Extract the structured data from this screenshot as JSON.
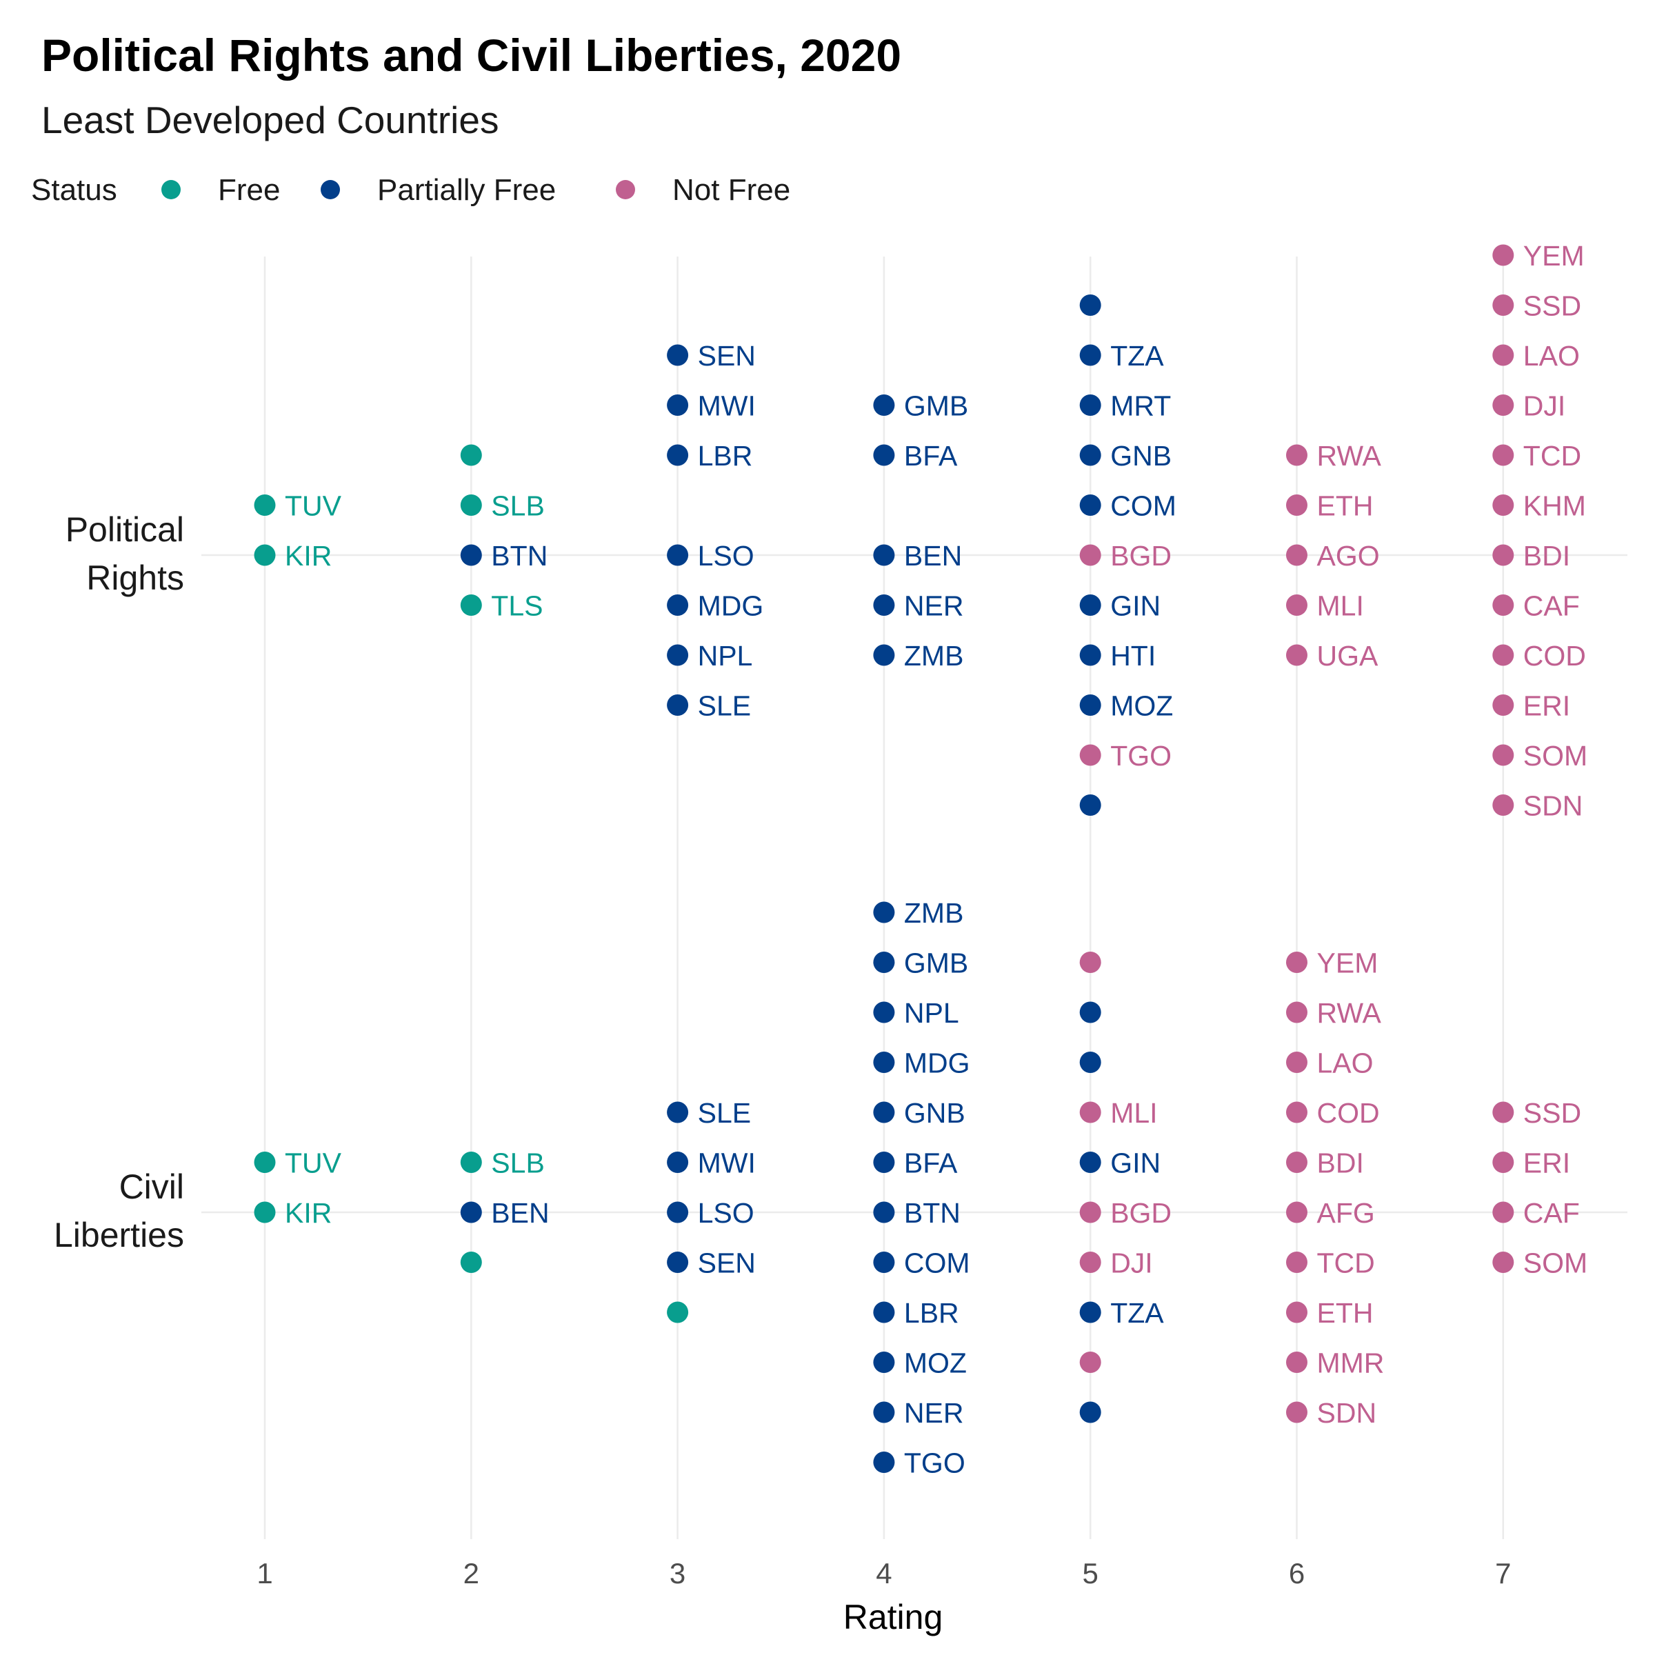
{
  "title": "Political Rights and Civil Liberties, 2020",
  "subtitle": "Least Developed Countries",
  "legend": {
    "title": "Status",
    "items": [
      {
        "key": "Free",
        "label": "Free",
        "color": "#089e8e"
      },
      {
        "key": "Partially Free",
        "label": "Partially Free",
        "color": "#023e8a"
      },
      {
        "key": "Not Free",
        "label": "Not Free",
        "color": "#c06090"
      }
    ],
    "placement": "top-left"
  },
  "chart_data": {
    "type": "scatter",
    "title": "Political Rights and Civil Liberties, 2020",
    "subtitle": "Least Developed Countries",
    "xlabel": "Rating",
    "ylabel": "",
    "x_ticks": [
      1,
      2,
      3,
      4,
      5,
      6,
      7
    ],
    "xlim": [
      1,
      7
    ],
    "categories": [
      "Political Rights",
      "Civil Liberties"
    ],
    "category_labels": [
      [
        "Political",
        "Rights"
      ],
      [
        "Civil",
        "Liberties"
      ]
    ],
    "grid": true,
    "series": [
      {
        "name": "Free",
        "color": "#089e8e",
        "points": [
          {
            "cat": "Political Rights",
            "x": 1,
            "offset": 0,
            "label": "KIR"
          },
          {
            "cat": "Political Rights",
            "x": 1,
            "offset": 1,
            "label": "TUV"
          },
          {
            "cat": "Political Rights",
            "x": 2,
            "offset": -1,
            "label": "TLS"
          },
          {
            "cat": "Political Rights",
            "x": 2,
            "offset": 1,
            "label": "SLB"
          },
          {
            "cat": "Political Rights",
            "x": 2,
            "offset": 2,
            "label": ""
          },
          {
            "cat": "Civil Liberties",
            "x": 1,
            "offset": 0,
            "label": "KIR"
          },
          {
            "cat": "Civil Liberties",
            "x": 1,
            "offset": 1,
            "label": "TUV"
          },
          {
            "cat": "Civil Liberties",
            "x": 2,
            "offset": 1,
            "label": "SLB"
          },
          {
            "cat": "Civil Liberties",
            "x": 2,
            "offset": -1,
            "label": ""
          },
          {
            "cat": "Civil Liberties",
            "x": 3,
            "offset": -2,
            "label": ""
          }
        ]
      },
      {
        "name": "Partially Free",
        "color": "#023e8a",
        "points": [
          {
            "cat": "Political Rights",
            "x": 2,
            "offset": 0,
            "label": "BTN"
          },
          {
            "cat": "Political Rights",
            "x": 3,
            "offset": 4,
            "label": "SEN"
          },
          {
            "cat": "Political Rights",
            "x": 3,
            "offset": 3,
            "label": "MWI"
          },
          {
            "cat": "Political Rights",
            "x": 3,
            "offset": 2,
            "label": "LBR"
          },
          {
            "cat": "Political Rights",
            "x": 3,
            "offset": 0,
            "label": "LSO"
          },
          {
            "cat": "Political Rights",
            "x": 3,
            "offset": -1,
            "label": "MDG"
          },
          {
            "cat": "Political Rights",
            "x": 3,
            "offset": -2,
            "label": "NPL"
          },
          {
            "cat": "Political Rights",
            "x": 3,
            "offset": -3,
            "label": "SLE"
          },
          {
            "cat": "Political Rights",
            "x": 4,
            "offset": 3,
            "label": "GMB"
          },
          {
            "cat": "Political Rights",
            "x": 4,
            "offset": 2,
            "label": "BFA"
          },
          {
            "cat": "Political Rights",
            "x": 4,
            "offset": 0,
            "label": "BEN"
          },
          {
            "cat": "Political Rights",
            "x": 4,
            "offset": -1,
            "label": "NER"
          },
          {
            "cat": "Political Rights",
            "x": 4,
            "offset": -2,
            "label": "ZMB"
          },
          {
            "cat": "Political Rights",
            "x": 5,
            "offset": 5,
            "label": ""
          },
          {
            "cat": "Political Rights",
            "x": 5,
            "offset": 4,
            "label": "TZA"
          },
          {
            "cat": "Political Rights",
            "x": 5,
            "offset": 3,
            "label": "MRT"
          },
          {
            "cat": "Political Rights",
            "x": 5,
            "offset": 2,
            "label": "GNB"
          },
          {
            "cat": "Political Rights",
            "x": 5,
            "offset": 1,
            "label": "COM"
          },
          {
            "cat": "Political Rights",
            "x": 5,
            "offset": -1,
            "label": "GIN"
          },
          {
            "cat": "Political Rights",
            "x": 5,
            "offset": -2,
            "label": "HTI"
          },
          {
            "cat": "Political Rights",
            "x": 5,
            "offset": -3,
            "label": "MOZ"
          },
          {
            "cat": "Political Rights",
            "x": 5,
            "offset": -5,
            "label": ""
          },
          {
            "cat": "Civil Liberties",
            "x": 2,
            "offset": 0,
            "label": "BEN"
          },
          {
            "cat": "Civil Liberties",
            "x": 3,
            "offset": 2,
            "label": "SLE"
          },
          {
            "cat": "Civil Liberties",
            "x": 3,
            "offset": 1,
            "label": "MWI"
          },
          {
            "cat": "Civil Liberties",
            "x": 3,
            "offset": 0,
            "label": "LSO"
          },
          {
            "cat": "Civil Liberties",
            "x": 3,
            "offset": -1,
            "label": "SEN"
          },
          {
            "cat": "Civil Liberties",
            "x": 4,
            "offset": 6,
            "label": "ZMB"
          },
          {
            "cat": "Civil Liberties",
            "x": 4,
            "offset": 5,
            "label": "GMB"
          },
          {
            "cat": "Civil Liberties",
            "x": 4,
            "offset": 4,
            "label": "NPL"
          },
          {
            "cat": "Civil Liberties",
            "x": 4,
            "offset": 3,
            "label": "MDG"
          },
          {
            "cat": "Civil Liberties",
            "x": 4,
            "offset": 2,
            "label": "GNB"
          },
          {
            "cat": "Civil Liberties",
            "x": 4,
            "offset": 1,
            "label": "BFA"
          },
          {
            "cat": "Civil Liberties",
            "x": 4,
            "offset": 0,
            "label": "BTN"
          },
          {
            "cat": "Civil Liberties",
            "x": 4,
            "offset": -1,
            "label": "COM"
          },
          {
            "cat": "Civil Liberties",
            "x": 4,
            "offset": -2,
            "label": "LBR"
          },
          {
            "cat": "Civil Liberties",
            "x": 4,
            "offset": -3,
            "label": "MOZ"
          },
          {
            "cat": "Civil Liberties",
            "x": 4,
            "offset": -4,
            "label": "NER"
          },
          {
            "cat": "Civil Liberties",
            "x": 4,
            "offset": -5,
            "label": "TGO"
          },
          {
            "cat": "Civil Liberties",
            "x": 5,
            "offset": 4,
            "label": ""
          },
          {
            "cat": "Civil Liberties",
            "x": 5,
            "offset": 3,
            "label": ""
          },
          {
            "cat": "Civil Liberties",
            "x": 5,
            "offset": 1,
            "label": "GIN"
          },
          {
            "cat": "Civil Liberties",
            "x": 5,
            "offset": -2,
            "label": "TZA"
          },
          {
            "cat": "Civil Liberties",
            "x": 5,
            "offset": -4,
            "label": ""
          }
        ]
      },
      {
        "name": "Not Free",
        "color": "#c06090",
        "points": [
          {
            "cat": "Political Rights",
            "x": 5,
            "offset": 0,
            "label": "BGD"
          },
          {
            "cat": "Political Rights",
            "x": 5,
            "offset": -4,
            "label": "TGO"
          },
          {
            "cat": "Political Rights",
            "x": 6,
            "offset": 2,
            "label": "RWA"
          },
          {
            "cat": "Political Rights",
            "x": 6,
            "offset": 1,
            "label": "ETH"
          },
          {
            "cat": "Political Rights",
            "x": 6,
            "offset": 0,
            "label": "AGO"
          },
          {
            "cat": "Political Rights",
            "x": 6,
            "offset": -1,
            "label": "MLI"
          },
          {
            "cat": "Political Rights",
            "x": 6,
            "offset": -2,
            "label": "UGA"
          },
          {
            "cat": "Political Rights",
            "x": 7,
            "offset": 6,
            "label": "YEM"
          },
          {
            "cat": "Political Rights",
            "x": 7,
            "offset": 5,
            "label": "SSD"
          },
          {
            "cat": "Political Rights",
            "x": 7,
            "offset": 4,
            "label": "LAO"
          },
          {
            "cat": "Political Rights",
            "x": 7,
            "offset": 3,
            "label": "DJI"
          },
          {
            "cat": "Political Rights",
            "x": 7,
            "offset": 2,
            "label": "TCD"
          },
          {
            "cat": "Political Rights",
            "x": 7,
            "offset": 1,
            "label": "KHM"
          },
          {
            "cat": "Political Rights",
            "x": 7,
            "offset": 0,
            "label": "BDI"
          },
          {
            "cat": "Political Rights",
            "x": 7,
            "offset": -1,
            "label": "CAF"
          },
          {
            "cat": "Political Rights",
            "x": 7,
            "offset": -2,
            "label": "COD"
          },
          {
            "cat": "Political Rights",
            "x": 7,
            "offset": -3,
            "label": "ERI"
          },
          {
            "cat": "Political Rights",
            "x": 7,
            "offset": -4,
            "label": "SOM"
          },
          {
            "cat": "Political Rights",
            "x": 7,
            "offset": -5,
            "label": "SDN"
          },
          {
            "cat": "Civil Liberties",
            "x": 5,
            "offset": 5,
            "label": ""
          },
          {
            "cat": "Civil Liberties",
            "x": 5,
            "offset": 2,
            "label": "MLI"
          },
          {
            "cat": "Civil Liberties",
            "x": 5,
            "offset": 0,
            "label": "BGD"
          },
          {
            "cat": "Civil Liberties",
            "x": 5,
            "offset": -1,
            "label": "DJI"
          },
          {
            "cat": "Civil Liberties",
            "x": 5,
            "offset": -3,
            "label": ""
          },
          {
            "cat": "Civil Liberties",
            "x": 6,
            "offset": 5,
            "label": "YEM"
          },
          {
            "cat": "Civil Liberties",
            "x": 6,
            "offset": 4,
            "label": "RWA"
          },
          {
            "cat": "Civil Liberties",
            "x": 6,
            "offset": 3,
            "label": "LAO"
          },
          {
            "cat": "Civil Liberties",
            "x": 6,
            "offset": 2,
            "label": "COD"
          },
          {
            "cat": "Civil Liberties",
            "x": 6,
            "offset": 1,
            "label": "BDI"
          },
          {
            "cat": "Civil Liberties",
            "x": 6,
            "offset": 0,
            "label": "AFG"
          },
          {
            "cat": "Civil Liberties",
            "x": 6,
            "offset": -1,
            "label": "TCD"
          },
          {
            "cat": "Civil Liberties",
            "x": 6,
            "offset": -2,
            "label": "ETH"
          },
          {
            "cat": "Civil Liberties",
            "x": 6,
            "offset": -3,
            "label": "MMR"
          },
          {
            "cat": "Civil Liberties",
            "x": 6,
            "offset": -4,
            "label": "SDN"
          },
          {
            "cat": "Civil Liberties",
            "x": 7,
            "offset": 2,
            "label": "SSD"
          },
          {
            "cat": "Civil Liberties",
            "x": 7,
            "offset": 1,
            "label": "ERI"
          },
          {
            "cat": "Civil Liberties",
            "x": 7,
            "offset": 0,
            "label": "CAF"
          },
          {
            "cat": "Civil Liberties",
            "x": 7,
            "offset": -1,
            "label": "SOM"
          }
        ]
      }
    ]
  }
}
